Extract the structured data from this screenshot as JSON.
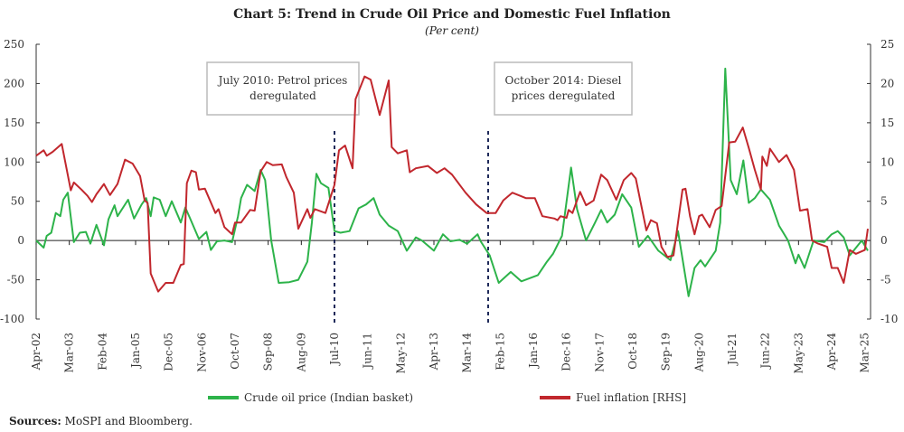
{
  "chart_data": {
    "type": "line",
    "title": "Chart 5: Trend in Crude Oil Price and Domestic Fuel Inflation",
    "subtitle": "(Per cent)",
    "x_unit": "months since Apr-02",
    "x_tick_labels": [
      "Apr-02",
      "Mar-03",
      "Feb-04",
      "Jan-05",
      "Dec-05",
      "Nov-06",
      "Oct-07",
      "Sep-08",
      "Aug-09",
      "Jul-10",
      "Jun-11",
      "May-12",
      "Apr-13",
      "Mar-14",
      "Feb-15",
      "Jan-16",
      "Dec-16",
      "Nov-17",
      "Oct-18",
      "Sep-19",
      "Aug-20",
      "Jul-21",
      "Jun-22",
      "May-23",
      "Apr-24",
      "Mar-25"
    ],
    "x_tick_step_months": 11,
    "xlim": [
      0,
      276
    ],
    "y_left": {
      "ylim": [
        -100,
        250
      ],
      "ticks": [
        250,
        200,
        150,
        100,
        50,
        0,
        -50,
        -100
      ]
    },
    "y_right": {
      "ylim": [
        -10,
        25
      ],
      "ticks": [
        25,
        20,
        15,
        10,
        5,
        0,
        -5,
        -10
      ]
    },
    "grid": false,
    "legend_position": "bottom",
    "series": [
      {
        "name": "Crude oil price (Indian basket)",
        "axis": "left",
        "color": "#2db34a",
        "points": [
          [
            0,
            0
          ],
          [
            2.5,
            -9
          ],
          [
            3.5,
            6
          ],
          [
            5,
            10
          ],
          [
            6.5,
            35
          ],
          [
            8,
            31
          ],
          [
            9,
            52
          ],
          [
            10.5,
            61
          ],
          [
            12.5,
            -2
          ],
          [
            14.5,
            10
          ],
          [
            16.5,
            11
          ],
          [
            18,
            -4
          ],
          [
            20,
            20
          ],
          [
            22.5,
            -6
          ],
          [
            24,
            27
          ],
          [
            26,
            45
          ],
          [
            27,
            31
          ],
          [
            30.5,
            52
          ],
          [
            32.5,
            28
          ],
          [
            35,
            46
          ],
          [
            36.5,
            54
          ],
          [
            38,
            31
          ],
          [
            39,
            55
          ],
          [
            41,
            52
          ],
          [
            43,
            31
          ],
          [
            45,
            50
          ],
          [
            48,
            23
          ],
          [
            49.5,
            42
          ],
          [
            51,
            29
          ],
          [
            54,
            2
          ],
          [
            56.5,
            11
          ],
          [
            58,
            -12
          ],
          [
            60,
            -1
          ],
          [
            62.5,
            0
          ],
          [
            65,
            -2
          ],
          [
            67,
            31
          ],
          [
            68,
            54
          ],
          [
            70,
            71
          ],
          [
            72.5,
            63
          ],
          [
            74.5,
            90
          ],
          [
            76,
            77
          ],
          [
            78,
            0
          ],
          [
            80.5,
            -54
          ],
          [
            84,
            -53
          ],
          [
            87,
            -50
          ],
          [
            90,
            -27
          ],
          [
            91.5,
            23
          ],
          [
            93,
            85
          ],
          [
            94.5,
            73
          ],
          [
            97,
            67
          ],
          [
            99,
            12
          ],
          [
            101,
            10
          ],
          [
            104,
            12
          ],
          [
            107,
            41
          ],
          [
            109.5,
            46
          ],
          [
            112,
            54
          ],
          [
            114,
            33
          ],
          [
            117,
            19
          ],
          [
            120,
            12
          ],
          [
            123,
            -13
          ],
          [
            126,
            4
          ],
          [
            128,
            0
          ],
          [
            132,
            -13
          ],
          [
            135,
            8
          ],
          [
            137.5,
            -1
          ],
          [
            140.5,
            1
          ],
          [
            143,
            -4
          ],
          [
            146.5,
            8
          ],
          [
            147.5,
            -1
          ],
          [
            150.5,
            -19
          ],
          [
            153.5,
            -54
          ],
          [
            157.5,
            -40
          ],
          [
            161,
            -52
          ],
          [
            166.5,
            -44
          ],
          [
            169.5,
            -27
          ],
          [
            171.5,
            -17
          ],
          [
            174.5,
            6
          ],
          [
            177.5,
            93
          ],
          [
            179.5,
            40
          ],
          [
            182.5,
            0
          ],
          [
            185.5,
            23
          ],
          [
            187.5,
            39
          ],
          [
            189.5,
            23
          ],
          [
            192,
            33
          ],
          [
            194.5,
            59
          ],
          [
            197.5,
            42
          ],
          [
            200,
            -8
          ],
          [
            203,
            6
          ],
          [
            206.5,
            -13
          ],
          [
            210.5,
            -25
          ],
          [
            213,
            12
          ],
          [
            216.5,
            -71
          ],
          [
            218.5,
            -35
          ],
          [
            220.5,
            -25
          ],
          [
            222,
            -33
          ],
          [
            225.5,
            -13
          ],
          [
            227,
            23
          ],
          [
            228.7,
            219
          ],
          [
            230.5,
            77
          ],
          [
            232.5,
            59
          ],
          [
            234.7,
            102
          ],
          [
            236.5,
            48
          ],
          [
            238.5,
            54
          ],
          [
            240.5,
            65
          ],
          [
            243.5,
            52
          ],
          [
            246.5,
            19
          ],
          [
            249.5,
            0
          ],
          [
            252,
            -29
          ],
          [
            253,
            -18
          ],
          [
            255,
            -35
          ],
          [
            258,
            0
          ],
          [
            261.5,
            -2
          ],
          [
            264,
            8
          ],
          [
            266,
            12
          ],
          [
            268,
            4
          ],
          [
            270,
            -19
          ],
          [
            274,
            0
          ],
          [
            276,
            -13
          ]
        ]
      },
      {
        "name": "Fuel inflation [RHS]",
        "axis": "right",
        "color": "#c1272d",
        "points": [
          [
            0,
            10.8
          ],
          [
            2.5,
            11.5
          ],
          [
            3.5,
            10.8
          ],
          [
            5.5,
            11.3
          ],
          [
            8.5,
            12.3
          ],
          [
            11.5,
            6.4
          ],
          [
            12.5,
            7.4
          ],
          [
            15,
            6.5
          ],
          [
            17,
            5.7
          ],
          [
            18.5,
            4.9
          ],
          [
            20,
            5.9
          ],
          [
            22.5,
            7.2
          ],
          [
            24.5,
            5.8
          ],
          [
            27,
            7.2
          ],
          [
            29.5,
            10.3
          ],
          [
            32,
            9.8
          ],
          [
            34.5,
            8.2
          ],
          [
            36,
            5.1
          ],
          [
            37,
            4.8
          ],
          [
            38,
            -4.2
          ],
          [
            40.5,
            -6.5
          ],
          [
            43,
            -5.4
          ],
          [
            45.5,
            -5.4
          ],
          [
            48,
            -3.1
          ],
          [
            49,
            -3.0
          ],
          [
            50,
            7.3
          ],
          [
            51.5,
            8.9
          ],
          [
            53,
            8.7
          ],
          [
            54,
            6.5
          ],
          [
            56,
            6.6
          ],
          [
            59.5,
            3.5
          ],
          [
            60.5,
            4.0
          ],
          [
            62.5,
            1.7
          ],
          [
            65,
            0.8
          ],
          [
            66,
            2.3
          ],
          [
            68,
            2.3
          ],
          [
            71,
            3.9
          ],
          [
            72.5,
            3.8
          ],
          [
            74.5,
            8.8
          ],
          [
            76.5,
            10.0
          ],
          [
            78.5,
            9.6
          ],
          [
            81.5,
            9.7
          ],
          [
            83,
            8.1
          ],
          [
            85.5,
            6.1
          ],
          [
            87,
            1.5
          ],
          [
            90,
            4.0
          ],
          [
            91,
            2.9
          ],
          [
            92.5,
            4.0
          ],
          [
            96,
            3.5
          ],
          [
            99,
            7.1
          ],
          [
            100.5,
            11.5
          ],
          [
            102.5,
            12.1
          ],
          [
            105,
            9.2
          ],
          [
            106,
            18.0
          ],
          [
            109,
            20.9
          ],
          [
            111,
            20.5
          ],
          [
            114,
            16.0
          ],
          [
            115.5,
            18.2
          ],
          [
            117,
            20.4
          ],
          [
            118,
            11.9
          ],
          [
            120,
            11.1
          ],
          [
            123,
            11.5
          ],
          [
            124,
            8.7
          ],
          [
            126,
            9.2
          ],
          [
            130,
            9.5
          ],
          [
            133,
            8.6
          ],
          [
            135.5,
            9.2
          ],
          [
            138,
            8.4
          ],
          [
            142.5,
            6.1
          ],
          [
            146,
            4.6
          ],
          [
            149.5,
            3.5
          ],
          [
            152.5,
            3.5
          ],
          [
            155,
            5.1
          ],
          [
            158,
            6.1
          ],
          [
            160,
            5.8
          ],
          [
            162.5,
            5.4
          ],
          [
            165.5,
            5.4
          ],
          [
            168,
            3.1
          ],
          [
            172,
            2.8
          ],
          [
            173,
            2.6
          ],
          [
            174,
            3.1
          ],
          [
            176,
            2.9
          ],
          [
            176.7,
            3.9
          ],
          [
            178,
            3.5
          ],
          [
            180.5,
            6.2
          ],
          [
            182.5,
            4.5
          ],
          [
            185,
            5.1
          ],
          [
            187.5,
            8.4
          ],
          [
            189.5,
            7.7
          ],
          [
            192.5,
            5.2
          ],
          [
            195,
            7.7
          ],
          [
            197.5,
            8.6
          ],
          [
            199,
            7.9
          ],
          [
            202.5,
            1.3
          ],
          [
            204,
            2.6
          ],
          [
            206,
            2.2
          ],
          [
            207.5,
            -0.8
          ],
          [
            209.5,
            -2.1
          ],
          [
            211.5,
            -1.9
          ],
          [
            214.5,
            6.5
          ],
          [
            215.5,
            6.6
          ],
          [
            217,
            3.1
          ],
          [
            218.5,
            0.8
          ],
          [
            220,
            3.1
          ],
          [
            221,
            3.3
          ],
          [
            223.5,
            1.7
          ],
          [
            225.5,
            3.9
          ],
          [
            227.5,
            4.4
          ],
          [
            230,
            12.5
          ],
          [
            232,
            12.6
          ],
          [
            234.5,
            14.4
          ],
          [
            236.5,
            11.8
          ],
          [
            238.5,
            9.0
          ],
          [
            240.5,
            6.5
          ],
          [
            241,
            10.7
          ],
          [
            242.5,
            9.5
          ],
          [
            243.5,
            11.7
          ],
          [
            246.5,
            10.0
          ],
          [
            249,
            10.9
          ],
          [
            251.5,
            9.0
          ],
          [
            253.5,
            3.8
          ],
          [
            256,
            4.0
          ],
          [
            257.5,
            0
          ],
          [
            259.5,
            -0.4
          ],
          [
            262.5,
            -0.8
          ],
          [
            264,
            -3.5
          ],
          [
            266,
            -3.5
          ],
          [
            268,
            -5.4
          ],
          [
            270,
            -1.2
          ],
          [
            272,
            -1.7
          ],
          [
            275,
            -1.2
          ],
          [
            276,
            1.5
          ]
        ]
      }
    ],
    "annotations": [
      {
        "month": 99,
        "line1": "July 2010: Petrol prices",
        "line2": "deregulated"
      },
      {
        "month": 150,
        "line1": "October 2014: Diesel",
        "line2": "prices deregulated"
      }
    ]
  },
  "sources_label": "Sources:",
  "sources_text": " MoSPI and Bloomberg."
}
